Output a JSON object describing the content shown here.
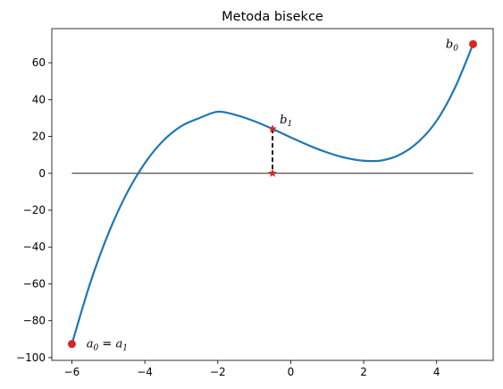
{
  "chart_data": {
    "type": "line",
    "title": "Metoda bisekce",
    "xlabel": "",
    "ylabel": "",
    "xlim": [
      -6.55,
      5.55
    ],
    "ylim": [
      -101.5,
      78.5
    ],
    "grid": false,
    "x_ticks": [
      -6,
      -4,
      -2,
      0,
      2,
      4
    ],
    "y_ticks": [
      -100,
      -80,
      -60,
      -40,
      -20,
      0,
      20,
      40,
      60
    ],
    "x_tick_labels": [
      "−6",
      "−4",
      "−2",
      "0",
      "2",
      "4"
    ],
    "y_tick_labels": [
      "−100",
      "−80",
      "−60",
      "−40",
      "−20",
      "0",
      "20",
      "40",
      "60"
    ],
    "series": [
      {
        "kind": "curve",
        "color": "#1f77b4",
        "x": [
          -6,
          -5.5,
          -5,
          -4.5,
          -4,
          -3.5,
          -3,
          -2.5,
          -2,
          -1.5,
          -1,
          -0.5,
          0,
          0.5,
          1,
          1.5,
          2,
          2.5,
          3,
          3.5,
          4,
          4.5,
          5
        ],
        "y": [
          -92.6,
          -59.7,
          -32.7,
          -11.1,
          5.5,
          17.6,
          25.6,
          30.0,
          33.4,
          31.6,
          28.3,
          24.1,
          19.5,
          15.1,
          11.3,
          8.4,
          6.8,
          7.0,
          10.2,
          17.1,
          28.5,
          46.3,
          70.1
        ]
      },
      {
        "kind": "zero-line",
        "color": "#000000",
        "x": [
          -6,
          5
        ],
        "y": [
          0,
          0
        ]
      }
    ],
    "endpoints": [
      {
        "x": -6,
        "y": -92.6,
        "color": "#d62728",
        "marker": "circle"
      },
      {
        "x": 5,
        "y": 70.1,
        "color": "#d62728",
        "marker": "circle"
      }
    ],
    "midpoint": {
      "x": -0.5,
      "y_curve": 24.1,
      "y_axis": 0,
      "color": "#d62728",
      "marker": "star"
    },
    "annotations": [
      {
        "id": "a",
        "main": "a",
        "sub": "0",
        "eq": " = ",
        "main2": "a",
        "sub2": "1",
        "x": -5.6,
        "y": -92.6
      },
      {
        "id": "b0",
        "main": "b",
        "sub": "0",
        "x": 4.25,
        "y": 70.1
      },
      {
        "id": "b1",
        "main": "b",
        "sub": "1",
        "x": -0.3,
        "y": 29.0
      }
    ]
  }
}
